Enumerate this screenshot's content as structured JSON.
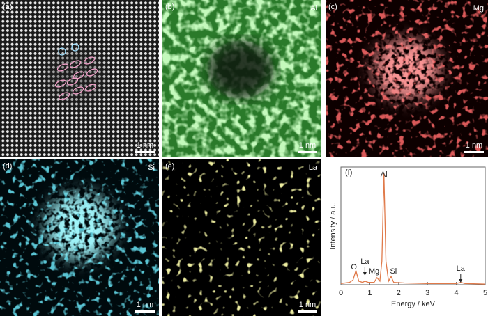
{
  "panels": [
    {
      "label": "(a)",
      "scale": "1 nm"
    },
    {
      "label": "(b)",
      "element": "Al",
      "scale": "1 nm"
    },
    {
      "label": "(c)",
      "element": "Mg",
      "scale": "1 nm"
    },
    {
      "label": "(d)",
      "element": "Si",
      "scale": "1 nm"
    },
    {
      "label": "(e)",
      "element": "La",
      "scale": "1 nm"
    }
  ],
  "chart_data": {
    "type": "line",
    "label": "(f)",
    "x_label": "Energy / keV",
    "y_label": "Intensity / a.u.",
    "color": "#e07a4a",
    "x": [
      0.0,
      0.3,
      0.42,
      0.52,
      0.62,
      0.75,
      0.83,
      0.95,
      1.15,
      1.25,
      1.35,
      1.42,
      1.49,
      1.56,
      1.65,
      1.74,
      1.83,
      2.2,
      3.0,
      4.0,
      4.15,
      4.3,
      5.0
    ],
    "values": [
      1,
      2,
      4,
      12,
      3,
      2,
      3,
      2,
      2,
      6,
      3,
      20,
      95,
      20,
      3,
      7,
      2,
      1.5,
      1,
      1,
      2,
      1,
      0.5
    ],
    "xlim": [
      0,
      5
    ],
    "xticks": [
      0,
      1,
      2,
      3,
      4,
      5
    ],
    "ylim": [
      0,
      100
    ],
    "annotations": [
      "Al",
      "O",
      "La",
      "Mg",
      "Si",
      "La"
    ]
  }
}
